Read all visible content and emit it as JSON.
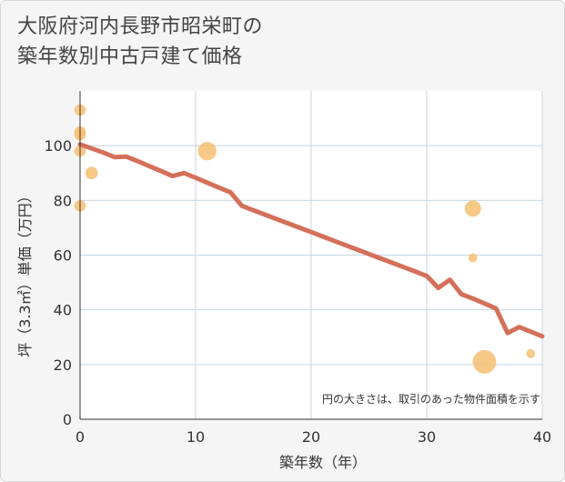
{
  "chart_data": {
    "type": "scatter+line",
    "title_lines": [
      "大阪府河内長野市昭栄町の",
      "築年数別中古戸建て価格"
    ],
    "xlabel": "築年数（年）",
    "ylabel": "坪（3.3㎡）単価（万円）",
    "xlim": [
      0,
      40
    ],
    "ylim": [
      0,
      120
    ],
    "xticks": [
      0,
      10,
      20,
      30,
      40
    ],
    "yticks": [
      0,
      20,
      40,
      60,
      80,
      100
    ],
    "grid": true,
    "note": "円の大きさは、取引のあった物件面積を示す",
    "colors": {
      "bubble": "#f5c071",
      "line": "#d4705a",
      "background": "#f5f5f5",
      "grid": "#c8d4e0"
    },
    "scatter": [
      {
        "x": 0,
        "y": 113,
        "size": 1
      },
      {
        "x": 0,
        "y": 105,
        "size": 1
      },
      {
        "x": 0,
        "y": 104,
        "size": 1
      },
      {
        "x": 0,
        "y": 98,
        "size": 1
      },
      {
        "x": 0,
        "y": 78,
        "size": 1
      },
      {
        "x": 1,
        "y": 90,
        "size": 1.2
      },
      {
        "x": 11,
        "y": 98,
        "size": 2.6
      },
      {
        "x": 34,
        "y": 77,
        "size": 2
      },
      {
        "x": 34,
        "y": 59,
        "size": 0.6
      },
      {
        "x": 35,
        "y": 21,
        "size": 4.2
      },
      {
        "x": 39,
        "y": 24,
        "size": 0.6
      }
    ],
    "trend": {
      "x": [
        0,
        1,
        2,
        3,
        4,
        5,
        6,
        7,
        8,
        9,
        10,
        11,
        12,
        13,
        14,
        15,
        16,
        17,
        18,
        19,
        20,
        21,
        22,
        23,
        24,
        25,
        26,
        27,
        28,
        29,
        30,
        31,
        32,
        33,
        34,
        35,
        36,
        37,
        38,
        39,
        40
      ],
      "y": [
        100.5,
        99,
        97.5,
        95.8,
        96,
        94.3,
        92.5,
        90.7,
        88.9,
        90,
        88.3,
        86.5,
        84.7,
        83,
        78,
        76.4,
        74.8,
        73.2,
        71.6,
        70,
        68.4,
        66.8,
        65.2,
        63.6,
        62,
        60.4,
        58.8,
        57.2,
        55.6,
        54,
        52.4,
        48,
        51,
        45.7,
        44.1,
        42.3,
        40.5,
        31.5,
        33.7,
        32,
        30.3
      ]
    }
  }
}
